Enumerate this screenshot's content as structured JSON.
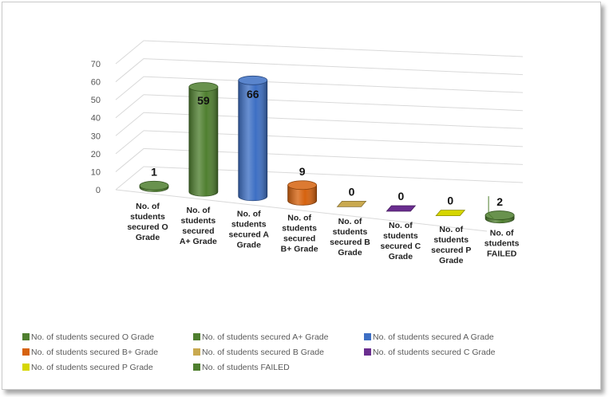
{
  "chart_data": {
    "type": "bar",
    "categories": [
      "No. of students secured O Grade",
      "No. of students secured A+ Grade",
      "No. of students secured A Grade",
      "No. of students secured B+ Grade",
      "No. of students secured B Grade",
      "No. of students secured C Grade",
      "No. of students secured  P Grade",
      "No. of students FAILED"
    ],
    "values": [
      1,
      59,
      66,
      9,
      0,
      0,
      0,
      2
    ],
    "data_labels": [
      "1",
      "59",
      "66",
      "9",
      "0",
      "0",
      "0",
      "2"
    ],
    "ylim": [
      0,
      70
    ],
    "yticks": [
      0,
      10,
      20,
      30,
      40,
      50,
      60,
      70
    ],
    "ytick_labels": [
      "0",
      "10",
      "20",
      "30",
      "40",
      "50",
      "60",
      "70"
    ],
    "xtick_labels": [
      [
        "No. of",
        "students",
        "secured O",
        "Grade"
      ],
      [
        "No. of",
        "students",
        "secured",
        "A+ Grade"
      ],
      [
        "No. of",
        "students",
        "secured A",
        "Grade"
      ],
      [
        "No. of",
        "students",
        "secured",
        "B+ Grade"
      ],
      [
        "No. of",
        "students",
        "secured B",
        "Grade"
      ],
      [
        "No. of",
        "students",
        "secured C",
        "Grade"
      ],
      [
        "No. of",
        "students",
        "secured  P",
        "Grade"
      ],
      [
        "No. of",
        "students",
        "FAILED"
      ]
    ],
    "colors": [
      "#4f7f2f",
      "#4f7f2f",
      "#3d6fc4",
      "#d6620e",
      "#c9a94f",
      "#6a2d8f",
      "#d6d600",
      "#4f7f2f"
    ],
    "legend_position": "bottom",
    "grid": true,
    "style": "3d-cylinder"
  },
  "legend": {
    "items": [
      "No. of students secured O Grade",
      "No. of students secured A+ Grade",
      "No. of students secured A Grade",
      "No. of students secured B+ Grade",
      "No. of students secured B Grade",
      "No. of students secured C Grade",
      "No. of students secured  P Grade",
      "No. of students FAILED"
    ]
  }
}
